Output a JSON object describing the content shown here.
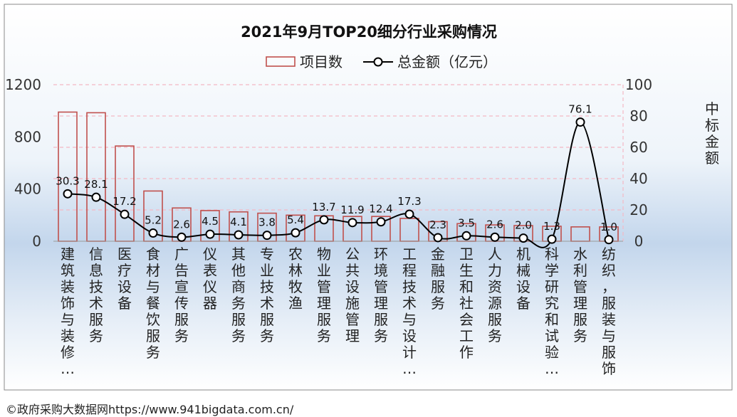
{
  "chart_data": {
    "type": "bar",
    "title": "2021年9月TOP20细分行业采购情况",
    "categories": [
      "建筑装饰与装修…",
      "信息技术服务",
      "医疗设备",
      "食材与餐饮服务",
      "广告宣传服务",
      "仪表仪器",
      "其他商务服务",
      "专业技术服务",
      "农林牧渔",
      "物业管理服务",
      "公共设施管理",
      "环境管理服务",
      "工程技术与设计…",
      "金融服务",
      "卫生和社会工作",
      "人力资源服务",
      "机械设备",
      "科学研究和试验…",
      "水利管理服务",
      "纺织，服装与服饰"
    ],
    "series": [
      {
        "name": "项目数",
        "type": "bar",
        "axis": "left",
        "color": "#C0504D",
        "values": [
          990,
          985,
          730,
          385,
          255,
          235,
          225,
          215,
          200,
          195,
          190,
          190,
          175,
          150,
          135,
          125,
          120,
          115,
          110,
          110
        ]
      },
      {
        "name": "总金额（亿元）",
        "type": "line",
        "axis": "right",
        "color": "#000000",
        "values": [
          30.3,
          28.1,
          17.2,
          5.2,
          2.6,
          4.5,
          4.1,
          3.8,
          5.4,
          13.7,
          11.9,
          12.4,
          17.3,
          2.3,
          3.5,
          2.6,
          2.0,
          1.3,
          76.1,
          1.0
        ],
        "labels": [
          "30.3",
          "28.1",
          "17.2",
          "5.2",
          "2.6",
          "4.5",
          "4.1",
          "3.8",
          "5.4",
          "13.7",
          "11.9",
          "12.4",
          "17.3",
          "2.3",
          "3.5",
          "2.6",
          "2.0",
          "1.3",
          "76.1",
          "1.0"
        ]
      }
    ],
    "y_left": {
      "range": [
        0,
        1200
      ],
      "ticks": [
        "0",
        "400",
        "800",
        "1200"
      ]
    },
    "y_right": {
      "range": [
        0,
        100
      ],
      "ticks": [
        "0",
        "20",
        "40",
        "60",
        "80",
        "100"
      ],
      "label": "中标金额"
    },
    "legend_position": "top-center",
    "grid": true,
    "grid_color": "#F4B8C4"
  },
  "footer_text": "©政府采购大数据网https://www.941bigdata.com.cn/"
}
